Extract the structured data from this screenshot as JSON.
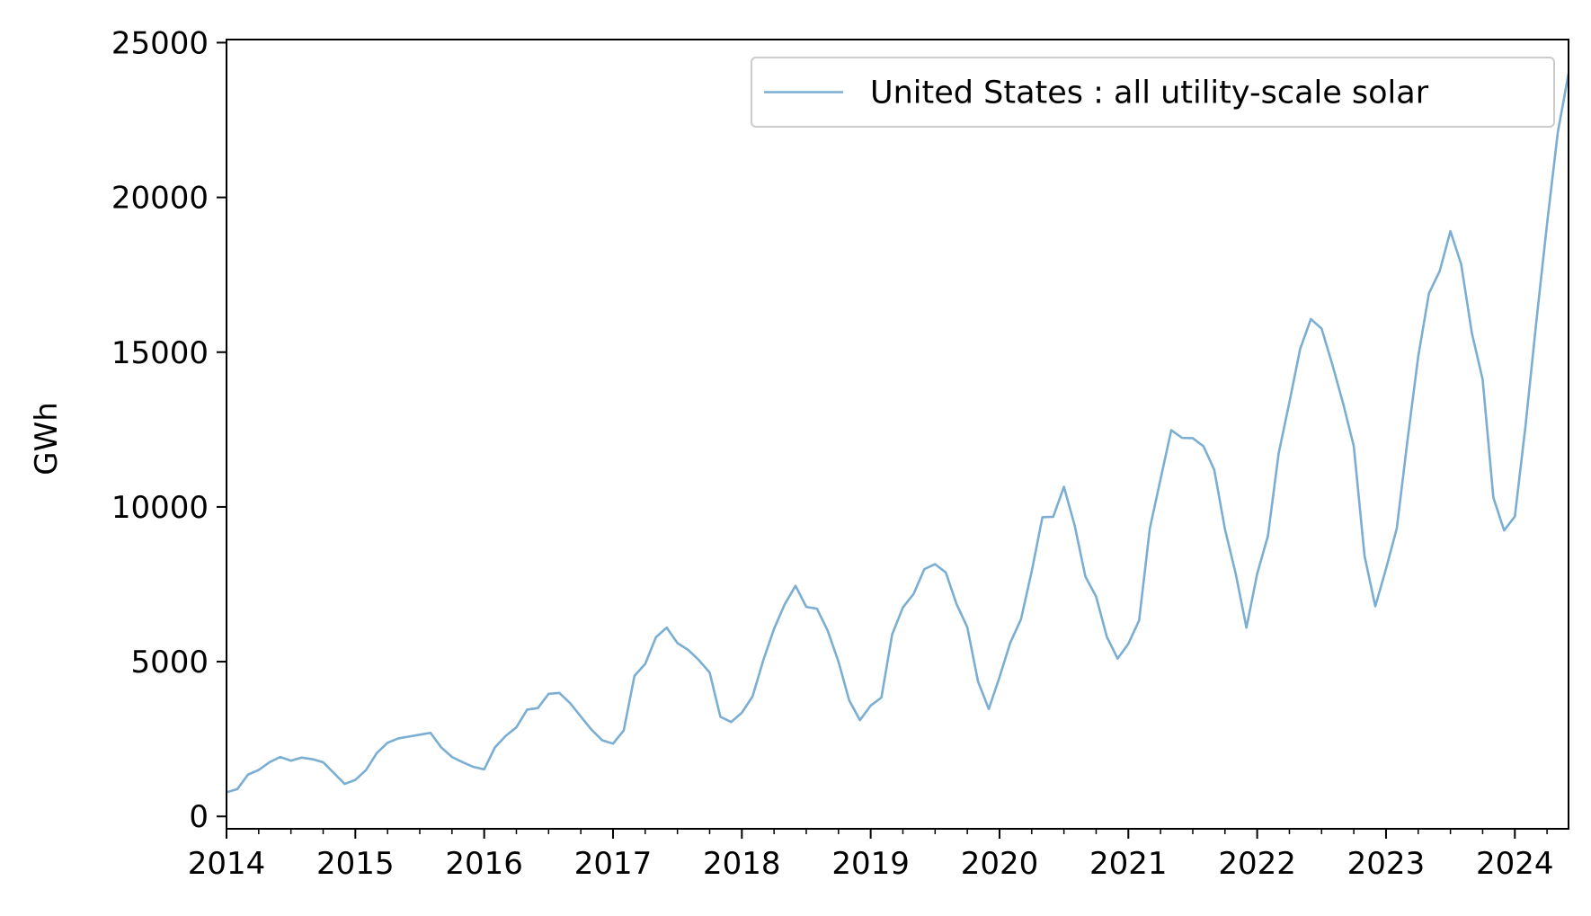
{
  "chart_data": {
    "type": "line",
    "title": "",
    "xlabel": "",
    "ylabel": "GWh",
    "ylim": [
      -400,
      25100
    ],
    "xlim": [
      "2014-01",
      "2024-06"
    ],
    "yticks": [
      0,
      5000,
      10000,
      15000,
      20000,
      25000
    ],
    "ytick_labels": [
      "0",
      "5000",
      "10000",
      "15000",
      "20000",
      "25000"
    ],
    "xticks": [
      "2014",
      "2015",
      "2016",
      "2017",
      "2018",
      "2019",
      "2020",
      "2021",
      "2022",
      "2023",
      "2024"
    ],
    "xtick_labels": [
      "2014",
      "2015",
      "2016",
      "2017",
      "2018",
      "2019",
      "2020",
      "2021",
      "2022",
      "2023",
      "2024"
    ],
    "grid": false,
    "legend_position": "top-right",
    "colors": {
      "series": "#7aaed2"
    },
    "x": [
      "2014-01",
      "2014-02",
      "2014-03",
      "2014-04",
      "2014-05",
      "2014-06",
      "2014-07",
      "2014-08",
      "2014-09",
      "2014-10",
      "2014-11",
      "2014-12",
      "2015-01",
      "2015-02",
      "2015-03",
      "2015-04",
      "2015-05",
      "2015-06",
      "2015-07",
      "2015-08",
      "2015-09",
      "2015-10",
      "2015-11",
      "2015-12",
      "2016-01",
      "2016-02",
      "2016-03",
      "2016-04",
      "2016-05",
      "2016-06",
      "2016-07",
      "2016-08",
      "2016-09",
      "2016-10",
      "2016-11",
      "2016-12",
      "2017-01",
      "2017-02",
      "2017-03",
      "2017-04",
      "2017-05",
      "2017-06",
      "2017-07",
      "2017-08",
      "2017-09",
      "2017-10",
      "2017-11",
      "2017-12",
      "2018-01",
      "2018-02",
      "2018-03",
      "2018-04",
      "2018-05",
      "2018-06",
      "2018-07",
      "2018-08",
      "2018-09",
      "2018-10",
      "2018-11",
      "2018-12",
      "2019-01",
      "2019-02",
      "2019-03",
      "2019-04",
      "2019-05",
      "2019-06",
      "2019-07",
      "2019-08",
      "2019-09",
      "2019-10",
      "2019-11",
      "2019-12",
      "2020-01",
      "2020-02",
      "2020-03",
      "2020-04",
      "2020-05",
      "2020-06",
      "2020-07",
      "2020-08",
      "2020-09",
      "2020-10",
      "2020-11",
      "2020-12",
      "2021-01",
      "2021-02",
      "2021-03",
      "2021-04",
      "2021-05",
      "2021-06",
      "2021-07",
      "2021-08",
      "2021-09",
      "2021-10",
      "2021-11",
      "2021-12",
      "2022-01",
      "2022-02",
      "2022-03",
      "2022-04",
      "2022-05",
      "2022-06",
      "2022-07",
      "2022-08",
      "2022-09",
      "2022-10",
      "2022-11",
      "2022-12",
      "2023-01",
      "2023-02",
      "2023-03",
      "2023-04",
      "2023-05",
      "2023-06",
      "2023-07",
      "2023-08",
      "2023-09",
      "2023-10",
      "2023-11",
      "2023-12",
      "2024-01",
      "2024-02",
      "2024-03",
      "2024-04",
      "2024-05",
      "2024-06"
    ],
    "series": [
      {
        "name": "United States : all utility-scale solar",
        "values": [
          780,
          880,
          1350,
          1500,
          1750,
          1920,
          1800,
          1900,
          1850,
          1750,
          1400,
          1050,
          1180,
          1500,
          2050,
          2380,
          2520,
          2580,
          2640,
          2700,
          2230,
          1920,
          1750,
          1600,
          1520,
          2230,
          2600,
          2880,
          3450,
          3500,
          3960,
          3990,
          3660,
          3230,
          2800,
          2460,
          2350,
          2780,
          4540,
          4930,
          5790,
          6100,
          5600,
          5380,
          5050,
          4650,
          3220,
          3050,
          3350,
          3880,
          5050,
          6060,
          6860,
          7450,
          6770,
          6710,
          6000,
          5000,
          3750,
          3110,
          3580,
          3840,
          5880,
          6750,
          7190,
          7990,
          8150,
          7880,
          6860,
          6110,
          4360,
          3470,
          4500,
          5610,
          6370,
          7920,
          9670,
          9680,
          10650,
          9400,
          7750,
          7100,
          5800,
          5100,
          5580,
          6330,
          9300,
          10900,
          12480,
          12230,
          12220,
          11960,
          11200,
          9280,
          7840,
          6100,
          7840,
          9060,
          11730,
          13380,
          15100,
          16070,
          15760,
          14600,
          13350,
          11960,
          8420,
          6790,
          8000,
          9300,
          12150,
          14860,
          16900,
          17620,
          18910,
          17840,
          15610,
          14120,
          10300,
          9240,
          9690,
          12640,
          15980,
          19150,
          22100,
          24000
        ]
      }
    ]
  }
}
